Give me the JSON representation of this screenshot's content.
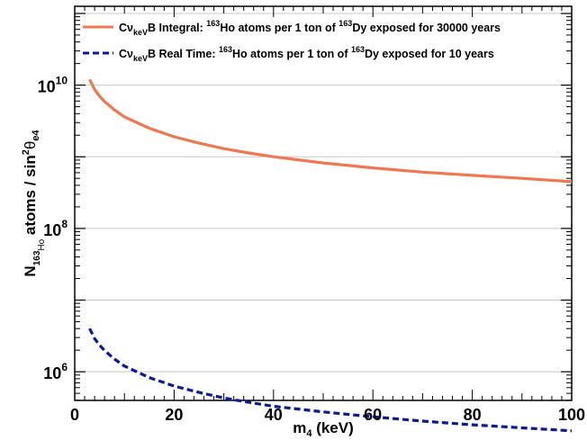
{
  "chart_data": {
    "type": "line",
    "xlabel": "m4 (keV)",
    "ylabel": "N163Ho atoms / sin2θe4",
    "xlim": [
      0,
      100
    ],
    "ylim_log10": [
      5.6,
      11.1
    ],
    "y_scale": "log",
    "x_ticks": [
      0,
      20,
      40,
      60,
      80,
      100
    ],
    "x_tick_labels": [
      "0",
      "20",
      "40",
      "60",
      "80",
      "100"
    ],
    "y_tick_exponents": [
      6,
      8,
      10
    ],
    "y_tick_labels": [
      "10^6",
      "10^8",
      "10^10"
    ],
    "horizontal_grid": true,
    "legend_placement": "top",
    "series": [
      {
        "name": "CνkeVB Integral: 163Ho atoms per 1 ton of 163Dy exposed for 30000 years",
        "style": "solid",
        "color": "#f07850",
        "x": [
          3,
          4,
          5,
          6,
          8,
          10,
          15,
          20,
          25,
          30,
          35,
          40,
          50,
          60,
          70,
          80,
          90,
          100
        ],
        "y": [
          12000000000.0,
          8700000000.0,
          7000000000.0,
          5900000000.0,
          4500000000.0,
          3600000000.0,
          2500000000.0,
          1900000000.0,
          1550000000.0,
          1300000000.0,
          1130000000.0,
          1000000000.0,
          820000000.0,
          700000000.0,
          610000000.0,
          550000000.0,
          500000000.0,
          450000000.0
        ]
      },
      {
        "name": "CνkeVB Real Time: 163Ho atoms per 1 ton of 163Dy exposed for 10 years",
        "style": "dashed",
        "color": "#0a1aa0",
        "x": [
          3,
          4,
          5,
          6,
          8,
          10,
          15,
          20,
          25,
          30,
          35,
          40,
          50,
          60,
          70,
          80,
          90,
          100
        ],
        "y": [
          4000000.0,
          2900000.0,
          2350000.0,
          1980000.0,
          1500000.0,
          1200000.0,
          830000.0,
          630000.0,
          515000.0,
          430000.0,
          375000.0,
          330000.0,
          275000.0,
          235000.0,
          205000.0,
          182000.0,
          165000.0,
          150000.0
        ]
      }
    ],
    "legend": [
      {
        "main": "Cν",
        "sub": "keV",
        "mid": "B Integral: ",
        "sup1": "163",
        "mid2": "Ho atoms per 1 ton of ",
        "sup2": "163",
        "tail": "Dy exposed for 30000 years"
      },
      {
        "main": "Cν",
        "sub": "keV",
        "mid": "B Real Time: ",
        "sup1": "163",
        "mid2": "Ho atoms per 1 ton of ",
        "sup2": "163",
        "tail": "Dy exposed for 10 years"
      }
    ],
    "axis_text": {
      "x_main": "m",
      "x_sub": "4",
      "x_tail": " (keV)",
      "y_main": "N",
      "y_sub": "163",
      "y_subsub": "Ho",
      "y_mid": " atoms / sin",
      "y_sup": "2",
      "y_theta": "θ",
      "y_sub2": "e4",
      "y_tick_base": "10"
    }
  }
}
